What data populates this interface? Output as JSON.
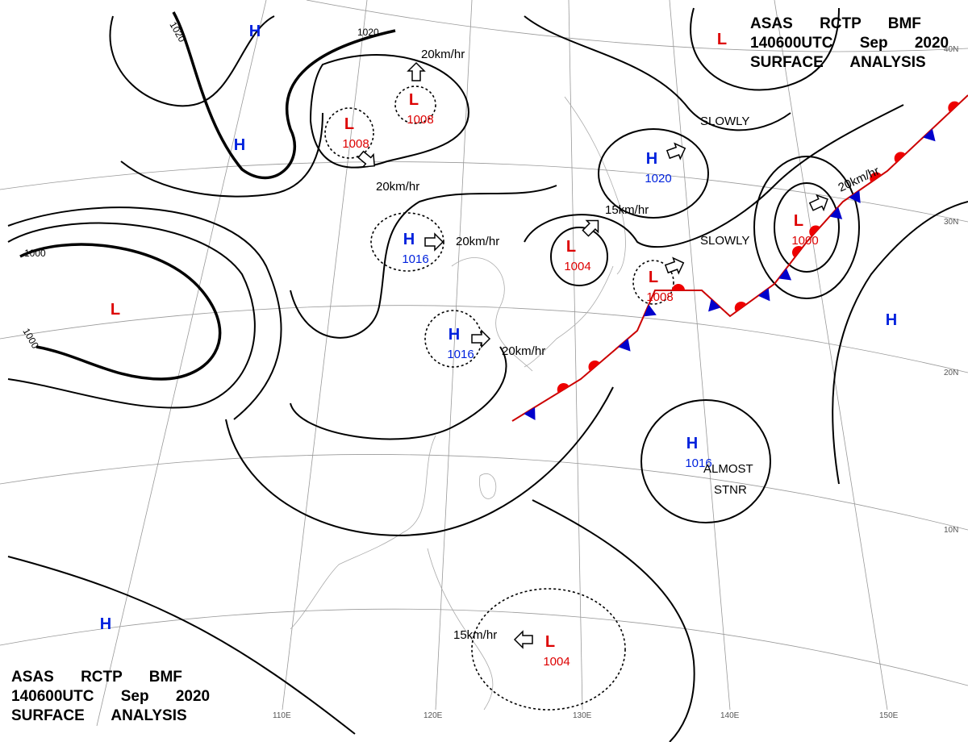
{
  "header_top": {
    "lines": [
      "ASAS RCTP BMF",
      "140600UTC Sep 2020",
      "SURFACE ANALYSIS"
    ]
  },
  "header_bottom": {
    "lines": [
      "ASAS RCTP BMF",
      "140600UTC Sep 2020",
      "SURFACE ANALYSIS"
    ]
  },
  "centers": [
    {
      "type": "H"
    },
    {
      "type": "H"
    },
    {
      "type": "L",
      "pressure": 1008
    },
    {
      "type": "L",
      "pressure": 1008
    },
    {
      "type": "H",
      "pressure": 1016
    },
    {
      "type": "H",
      "pressure": 1016
    },
    {
      "type": "L",
      "pressure": 1004
    },
    {
      "type": "L",
      "pressure": 1008
    },
    {
      "type": "H",
      "pressure": 1020
    },
    {
      "type": "L",
      "pressure": 1000
    },
    {
      "type": "H"
    },
    {
      "type": "H",
      "pressure": 1016
    },
    {
      "type": "L",
      "pressure": 1004
    },
    {
      "type": "H"
    },
    {
      "type": "L"
    },
    {
      "type": "L"
    }
  ],
  "motions": [
    "20km/hr",
    "20km/hr",
    "20km/hr",
    "20km/hr",
    "15km/hr",
    "SLOWLY",
    "SLOWLY",
    "20km/hr",
    "15km/hr",
    "ALMOST",
    "STNR"
  ],
  "isobar_labels": [
    "1020",
    "1020",
    "1000",
    "1000"
  ],
  "latitude_labels": [
    "40N",
    "30N",
    "20N",
    "10N"
  ],
  "longitude_labels": [
    "110E",
    "120E",
    "130E",
    "140E",
    "150E"
  ]
}
